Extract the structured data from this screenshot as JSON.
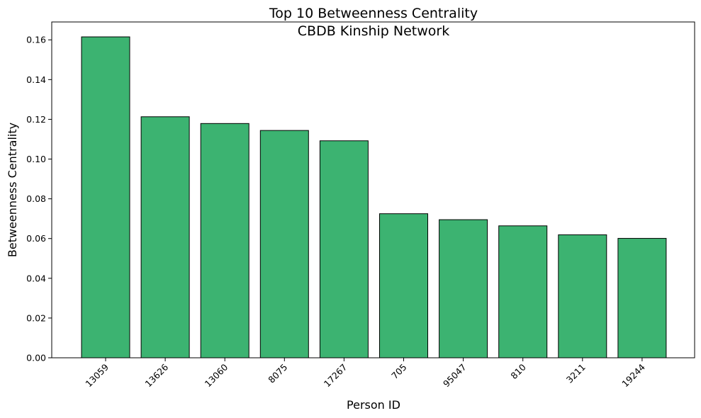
{
  "chart_data": {
    "type": "bar",
    "title": "Top 10 Betweenness Centrality",
    "subtitle": "CBDB Kinship Network",
    "xlabel": "Person ID",
    "ylabel": "Betweenness Centrality",
    "categories": [
      "13059",
      "13626",
      "13060",
      "8075",
      "17267",
      "705",
      "95047",
      "810",
      "3211",
      "19244"
    ],
    "values": [
      0.1615,
      0.1213,
      0.1179,
      0.1144,
      0.1092,
      0.0725,
      0.0695,
      0.0664,
      0.0619,
      0.0601
    ],
    "ylim": [
      0,
      0.169
    ],
    "yticks": [
      "0.00",
      "0.02",
      "0.04",
      "0.06",
      "0.08",
      "0.10",
      "0.12",
      "0.14",
      "0.16"
    ],
    "grid": false,
    "legend": "none",
    "bar_color": "#3cb371",
    "edge_color": "#000000"
  }
}
